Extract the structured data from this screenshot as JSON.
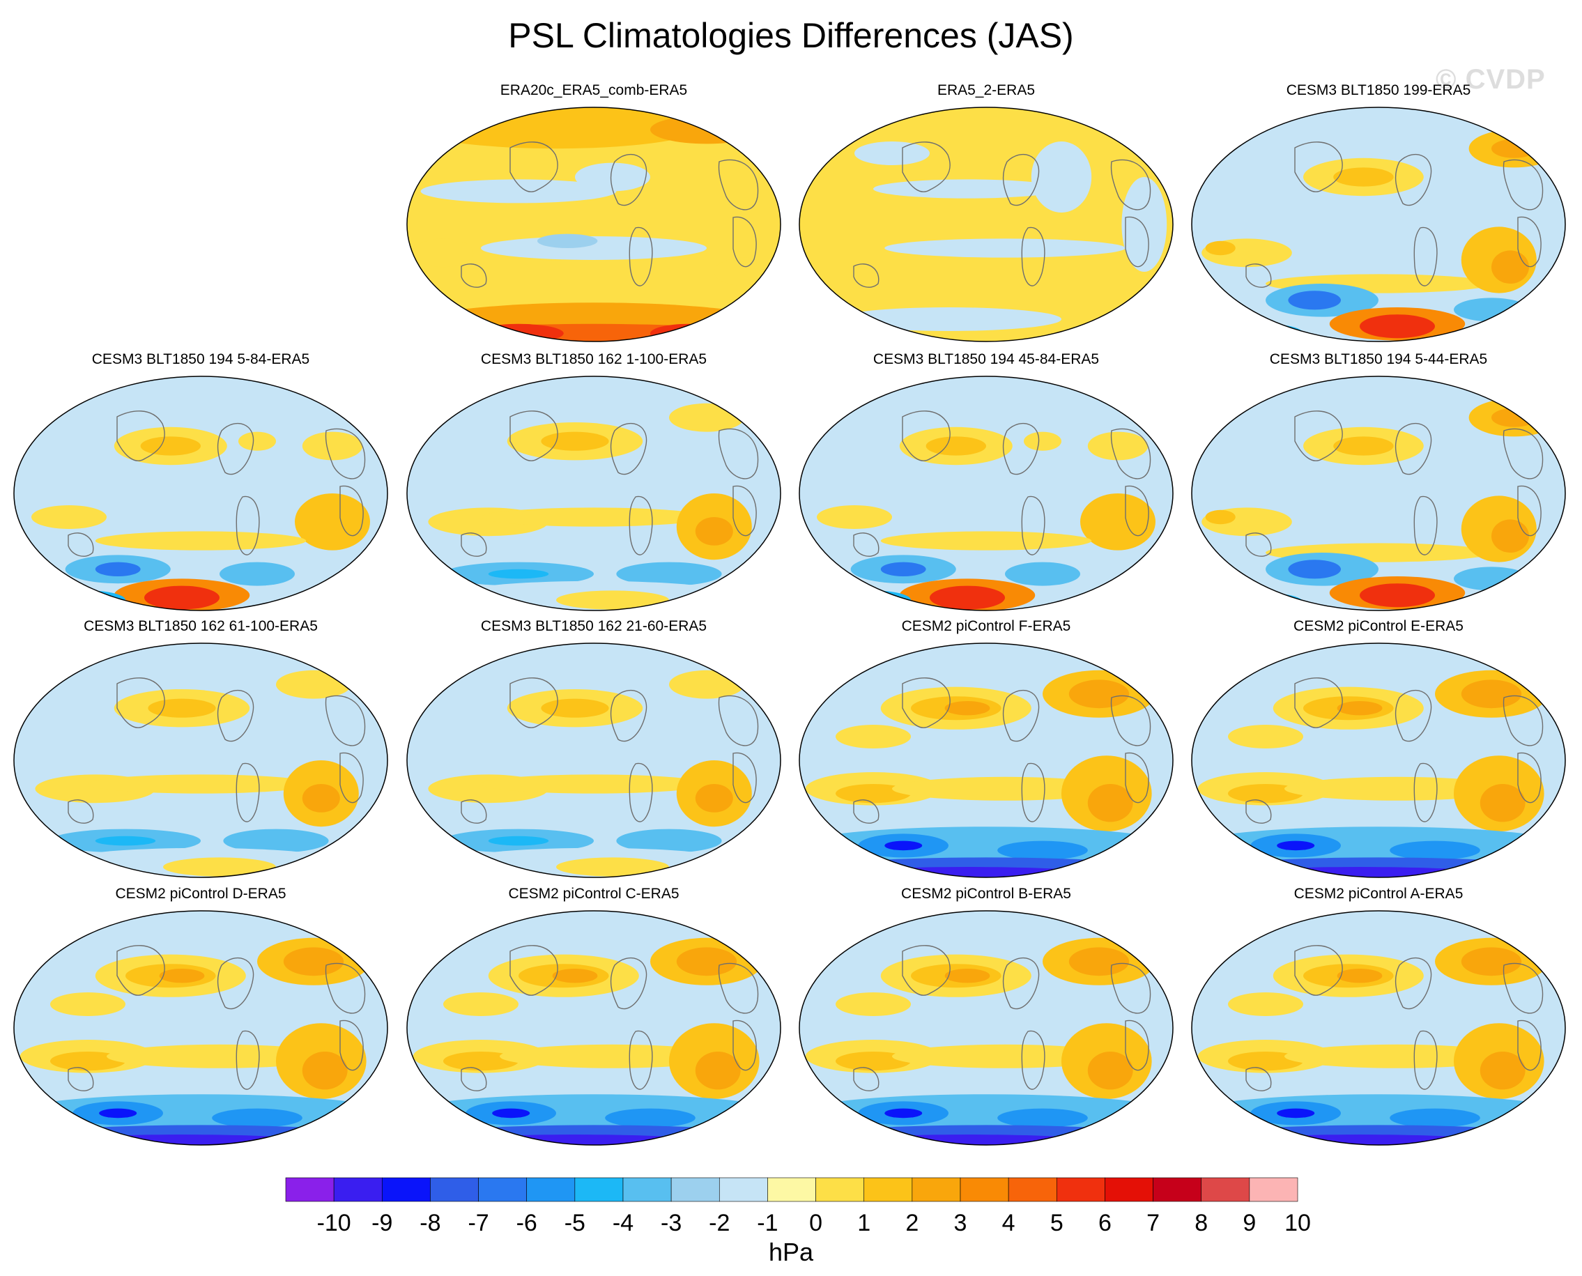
{
  "title": "PSL Climatologies Differences (JAS)",
  "watermark": "© CVDP",
  "colorbar": {
    "unit_label": "hPa",
    "tick_labels": [
      "-10",
      "-9",
      "-8",
      "-7",
      "-6",
      "-5",
      "-4",
      "-3",
      "-2",
      "-1",
      "0",
      "1",
      "2",
      "3",
      "4",
      "5",
      "6",
      "7",
      "8",
      "9",
      "10"
    ],
    "colors": [
      "#8a20ea",
      "#3a1ef0",
      "#0a14fa",
      "#2f5ee8",
      "#2a78f0",
      "#1f96f4",
      "#1cb8f6",
      "#58bff0",
      "#9cd0ee",
      "#c6e4f6",
      "#fdf8a4",
      "#fddf47",
      "#fcc318",
      "#f9a60c",
      "#f98a05",
      "#f7640a",
      "#f0300e",
      "#e41006",
      "#c6001a",
      "#de4848",
      "#fcb4b4"
    ]
  },
  "panels": [
    {
      "label": "ERA20c_ERA5_comb-ERA5",
      "pattern": "era20c"
    },
    {
      "label": "ERA5_2-ERA5",
      "pattern": "era5_2"
    },
    {
      "label": "CESM3 BLT1850 199-ERA5",
      "pattern": "cesm3a"
    },
    {
      "label": "CESM3 BLT1850 194 5-84-ERA5",
      "pattern": "cesm3b"
    },
    {
      "label": "CESM3 BLT1850 162 1-100-ERA5",
      "pattern": "cesm3c"
    },
    {
      "label": "CESM3 BLT1850 194 45-84-ERA5",
      "pattern": "cesm3b"
    },
    {
      "label": "CESM3 BLT1850 194 5-44-ERA5",
      "pattern": "cesm3a"
    },
    {
      "label": "CESM3 BLT1850 162 61-100-ERA5",
      "pattern": "cesm3c"
    },
    {
      "label": "CESM3 BLT1850 162 21-60-ERA5",
      "pattern": "cesm3c"
    },
    {
      "label": "CESM2 piControl F-ERA5",
      "pattern": "cesm2"
    },
    {
      "label": "CESM2 piControl E-ERA5",
      "pattern": "cesm2"
    },
    {
      "label": "CESM2 piControl D-ERA5",
      "pattern": "cesm2"
    },
    {
      "label": "CESM2 piControl C-ERA5",
      "pattern": "cesm2"
    },
    {
      "label": "CESM2 piControl B-ERA5",
      "pattern": "cesm2"
    },
    {
      "label": "CESM2 piControl A-ERA5",
      "pattern": "cesm2"
    }
  ]
}
